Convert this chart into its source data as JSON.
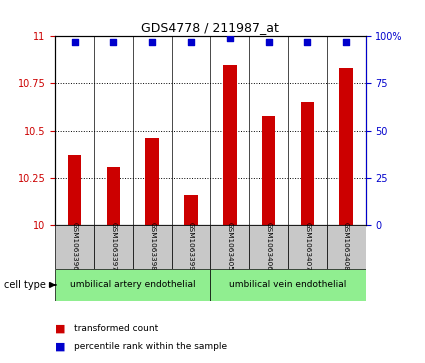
{
  "title": "GDS4778 / 211987_at",
  "samples": [
    "GSM1063396",
    "GSM1063397",
    "GSM1063398",
    "GSM1063399",
    "GSM1063405",
    "GSM1063406",
    "GSM1063407",
    "GSM1063408"
  ],
  "bar_values": [
    10.37,
    10.31,
    10.46,
    10.16,
    10.85,
    10.58,
    10.65,
    10.83
  ],
  "percentile_values": [
    97,
    97,
    97,
    97,
    99,
    97,
    97,
    97
  ],
  "bar_color": "#cc0000",
  "percentile_color": "#0000cc",
  "ylim_left": [
    10.0,
    11.0
  ],
  "ylim_right": [
    0,
    100
  ],
  "yticks_left": [
    10.0,
    10.25,
    10.5,
    10.75,
    11.0
  ],
  "yticks_left_labels": [
    "10",
    "10.25",
    "10.5",
    "10.75",
    "11"
  ],
  "yticks_right": [
    0,
    25,
    50,
    75,
    100
  ],
  "yticks_right_labels": [
    "0",
    "25",
    "50",
    "75",
    "100%"
  ],
  "cell_types": [
    {
      "label": "umbilical artery endothelial",
      "start": 0,
      "end": 4,
      "color": "#90ee90"
    },
    {
      "label": "umbilical vein endothelial",
      "start": 4,
      "end": 8,
      "color": "#90ee90"
    }
  ],
  "cell_type_label": "cell type",
  "legend_bar_label": "transformed count",
  "legend_dot_label": "percentile rank within the sample",
  "sample_box_color": "#c8c8c8",
  "plot_bg": "#ffffff",
  "left_tick_color": "#cc0000",
  "right_tick_color": "#0000cc"
}
